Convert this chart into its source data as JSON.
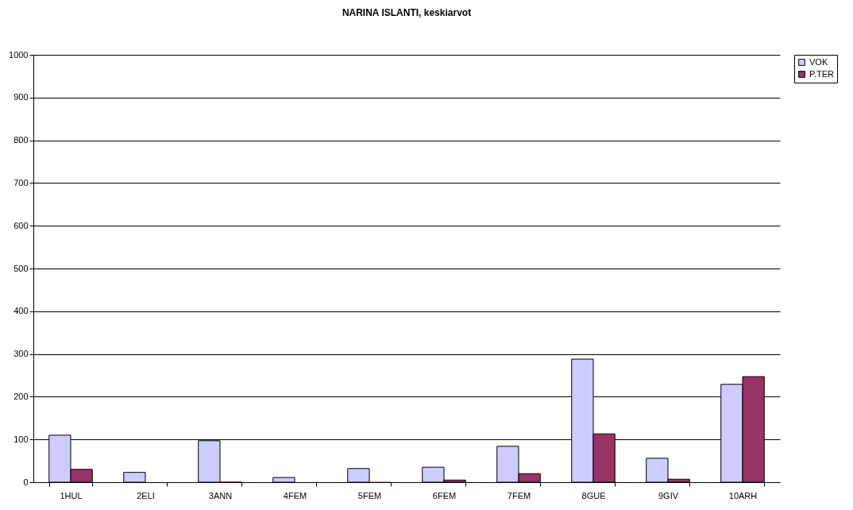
{
  "chart_data": {
    "type": "bar",
    "title": "NARINA ISLANTI, keskiarvot",
    "categories": [
      "1HUL",
      "2ELI",
      "3ANN",
      "4FEM",
      "5FEM",
      "6FEM",
      "7FEM",
      "8GUE",
      "9GIV",
      "10ARH"
    ],
    "series": [
      {
        "name": "VOK",
        "color": "#ccccff",
        "values": [
          110,
          23,
          97,
          11,
          32,
          35,
          84,
          288,
          56,
          229
        ]
      },
      {
        "name": "P.TER",
        "color": "#993366",
        "values": [
          30,
          null,
          2,
          null,
          1,
          5,
          20,
          113,
          7,
          247
        ]
      }
    ],
    "ylim": [
      0,
      1000
    ],
    "yticks": [
      0,
      100,
      200,
      300,
      400,
      500,
      600,
      700,
      800,
      900,
      1000
    ],
    "grid": "y",
    "legend": "right"
  }
}
